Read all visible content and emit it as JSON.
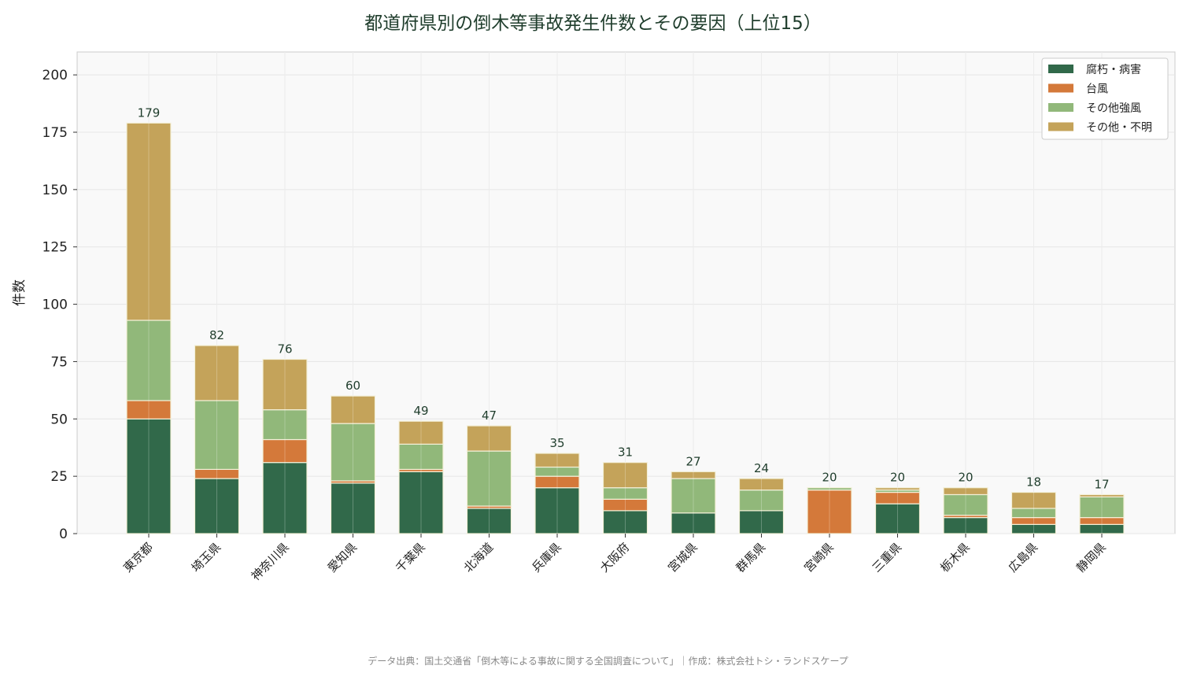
{
  "chart_data": {
    "type": "bar",
    "stacked": true,
    "title": "都道府県別の倒木等事故発生件数とその要因（上位15）",
    "xlabel": "",
    "ylabel": "件数",
    "ylim": [
      0,
      210
    ],
    "yticks": [
      0,
      25,
      50,
      75,
      100,
      125,
      150,
      175,
      200
    ],
    "grid": true,
    "legend_position": "top-right",
    "categories": [
      "東京都",
      "埼玉県",
      "神奈川県",
      "愛知県",
      "千葉県",
      "北海道",
      "兵庫県",
      "大阪府",
      "宮城県",
      "群馬県",
      "宮崎県",
      "三重県",
      "栃木県",
      "広島県",
      "静岡県"
    ],
    "series": [
      {
        "name": "腐朽・病害",
        "color": "#31694a",
        "values": [
          50,
          24,
          31,
          22,
          27,
          11,
          20,
          10,
          9,
          10,
          0,
          13,
          7,
          4,
          4
        ]
      },
      {
        "name": "台風",
        "color": "#d4793a",
        "values": [
          8,
          4,
          10,
          1,
          1,
          1,
          5,
          5,
          0,
          0,
          19,
          5,
          1,
          3,
          3
        ]
      },
      {
        "name": "その他強風",
        "color": "#91b87a",
        "values": [
          35,
          30,
          13,
          25,
          11,
          24,
          4,
          5,
          15,
          9,
          1,
          1,
          9,
          4,
          9
        ]
      },
      {
        "name": "その他・不明",
        "color": "#c4a35a",
        "values": [
          86,
          24,
          22,
          12,
          10,
          11,
          6,
          11,
          3,
          5,
          0,
          1,
          3,
          7,
          1
        ]
      }
    ],
    "totals": [
      179,
      82,
      76,
      60,
      49,
      47,
      35,
      31,
      27,
      24,
      20,
      20,
      20,
      18,
      17
    ]
  },
  "footer": "データ出典：国土交通省「倒木等による事故に関する全国調査について」｜作成：株式会社トシ・ランドスケープ"
}
